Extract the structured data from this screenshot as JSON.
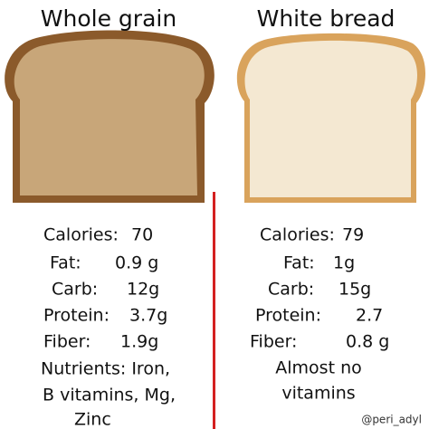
{
  "columns": [
    {
      "title": "Whole grain",
      "rows": [
        {
          "label": "Calories:",
          "value": "70"
        },
        {
          "label": "Fat:",
          "value": "0.9 g"
        },
        {
          "label": "Carb:",
          "value": "12g"
        },
        {
          "label": "Protein:",
          "value": "3.7g"
        },
        {
          "label": "Fiber:",
          "value": "1.9g"
        }
      ],
      "note": [
        "Nutrients: Iron,",
        "B vitamins, Mg,",
        "Zinc"
      ]
    },
    {
      "title": "White bread",
      "rows": [
        {
          "label": "Calories:",
          "value": "79"
        },
        {
          "label": "Fat:",
          "value": "1g"
        },
        {
          "label": "Carb:",
          "value": "15g"
        },
        {
          "label": "Protein:",
          "value": "2.7"
        },
        {
          "label": "Fiber:",
          "value": "0.8 g"
        }
      ],
      "note": [
        "Almost no",
        "vitamins"
      ]
    }
  ],
  "credit": "@peri_adyl"
}
